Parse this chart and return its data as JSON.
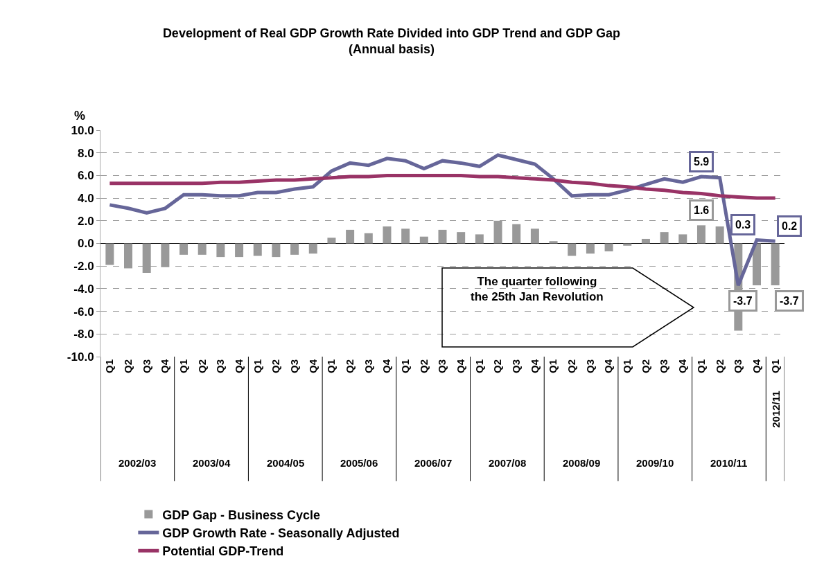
{
  "chart_data": {
    "type": "bar",
    "title": "Development of Real GDP Growth Rate Divided into GDP Trend and GDP Gap",
    "subtitle": "(Annual basis)",
    "ylabel": "%",
    "categories": [
      "Q1",
      "Q2",
      "Q3",
      "Q4",
      "Q1",
      "Q2",
      "Q3",
      "Q4",
      "Q1",
      "Q2",
      "Q3",
      "Q4",
      "Q1",
      "Q2",
      "Q3",
      "Q4",
      "Q1",
      "Q2",
      "Q3",
      "Q4",
      "Q1",
      "Q2",
      "Q3",
      "Q4",
      "Q1",
      "Q2",
      "Q3",
      "Q4",
      "Q1",
      "Q2",
      "Q3",
      "Q4",
      "Q1",
      "Q2",
      "Q3",
      "Q4",
      "Q1"
    ],
    "series": [
      {
        "name": "GDP Gap - Business Cycle",
        "color": "#999999",
        "values": [
          -1.9,
          -2.2,
          -2.6,
          -2.1,
          -1.0,
          -1.0,
          -1.2,
          -1.2,
          -1.1,
          -1.2,
          -1.0,
          -0.9,
          0.5,
          1.2,
          0.9,
          1.5,
          1.3,
          0.6,
          1.2,
          1.0,
          0.8,
          2.0,
          1.7,
          1.3,
          0.2,
          -1.1,
          -0.9,
          -0.7,
          -0.2,
          0.4,
          1.0,
          0.8,
          1.6,
          1.5,
          -7.7,
          -3.7,
          -3.7
        ],
        "value_labels": [
          null,
          null,
          null,
          null,
          null,
          null,
          null,
          null,
          null,
          null,
          null,
          null,
          null,
          null,
          null,
          null,
          null,
          null,
          null,
          null,
          null,
          null,
          null,
          null,
          null,
          null,
          null,
          null,
          null,
          null,
          null,
          null,
          "1.6",
          null,
          null,
          "-3.7",
          "-3.7"
        ]
      },
      {
        "name": "GDP Growth Rate - Seasonally Adjusted",
        "type": "line",
        "color": "#666699",
        "values": [
          3.4,
          3.1,
          2.7,
          3.1,
          4.3,
          4.3,
          4.2,
          4.2,
          4.5,
          4.5,
          4.8,
          5.0,
          6.4,
          7.1,
          6.9,
          7.5,
          7.3,
          6.6,
          7.3,
          7.1,
          6.8,
          7.8,
          7.4,
          7.0,
          5.7,
          4.2,
          4.3,
          4.3,
          4.7,
          5.2,
          5.7,
          5.4,
          5.9,
          5.8,
          -3.7,
          0.3,
          0.2
        ],
        "value_labels": [
          null,
          null,
          null,
          null,
          null,
          null,
          null,
          null,
          null,
          null,
          null,
          null,
          null,
          null,
          null,
          null,
          null,
          null,
          null,
          null,
          null,
          null,
          null,
          null,
          null,
          null,
          null,
          null,
          null,
          null,
          null,
          null,
          "5.9",
          null,
          null,
          "0.3",
          "0.2"
        ]
      },
      {
        "name": "Potential GDP-Trend",
        "type": "line",
        "color": "#993366",
        "values": [
          5.3,
          5.3,
          5.3,
          5.3,
          5.3,
          5.3,
          5.4,
          5.4,
          5.5,
          5.6,
          5.6,
          5.7,
          5.8,
          5.9,
          5.9,
          6.0,
          6.0,
          6.0,
          6.0,
          6.0,
          5.9,
          5.9,
          5.8,
          5.7,
          5.6,
          5.4,
          5.3,
          5.1,
          5.0,
          4.8,
          4.7,
          4.5,
          4.4,
          4.2,
          4.1,
          4.0,
          4.0
        ]
      }
    ],
    "annotations": [
      "The quarter following the 25th Jan Revolution",
      "2002/03",
      "2003/04",
      "2004/05",
      "2005/06",
      "2006/07",
      "2007/08",
      "2008/09",
      "2009/10",
      "2010/11",
      "2012/11"
    ],
    "ylim": [
      -10,
      10
    ],
    "yticks": [
      {
        "value": -10,
        "label": "-10.0"
      },
      {
        "value": -8,
        "label": "-8.0"
      },
      {
        "value": -6,
        "label": "-6.0"
      },
      {
        "value": -4,
        "label": "-4.0"
      },
      {
        "value": -2,
        "label": "-2.0"
      },
      {
        "value": 0,
        "label": "0.0"
      },
      {
        "value": 2,
        "label": "2.0"
      },
      {
        "value": 4,
        "label": "4.0"
      },
      {
        "value": 6,
        "label": "6.0"
      },
      {
        "value": 8,
        "label": "8.0"
      },
      {
        "value": 10,
        "label": "10.0"
      }
    ],
    "grid": "y",
    "legend": "bottom left",
    "line_style": "solid",
    "marker": "none"
  }
}
